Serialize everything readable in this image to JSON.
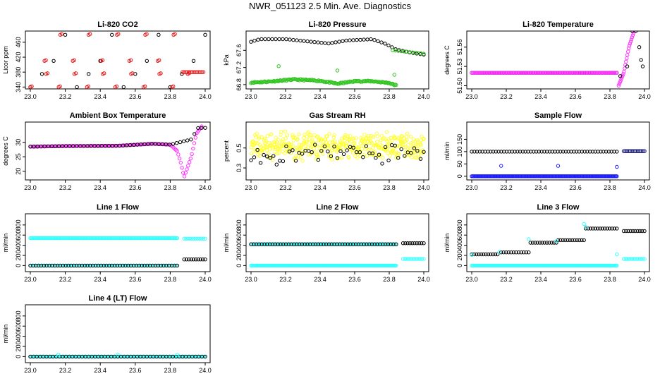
{
  "title": "NWR_051123  2.5 Min. Ave. Diagnostics",
  "colors": {
    "black": "#000000",
    "red": "#e8191c",
    "green": "#31c420",
    "magenta": "#ff33ff",
    "yellow": "#ffff33",
    "blue": "#1a1aff",
    "navy": "#0c0c6e",
    "cyan": "#33ffff"
  },
  "chart_data": [
    {
      "type": "scatter",
      "title": "Li-820 CO2",
      "ylabel": "Licor ppm",
      "xlim": [
        23.0,
        24.0
      ],
      "ylim": [
        335,
        490
      ],
      "x_ticks": [
        "23.0",
        "23.2",
        "23.4",
        "23.6",
        "23.8",
        "24.0"
      ],
      "y_ticks": [
        "340",
        "380",
        "420",
        "460"
      ],
      "series": [
        {
          "name": "black",
          "color": "black",
          "gen": "levels",
          "levels": [
            340,
            375,
            410,
            480
          ],
          "x0": 23.0,
          "x1": 24.0,
          "n": 16
        },
        {
          "name": "red",
          "color": "red",
          "gen": "levels",
          "levels": [
            340,
            375,
            410,
            480
          ],
          "x0": 23.0,
          "x1": 23.85,
          "n": 22,
          "shift": 0.05
        },
        {
          "name": "red-tail",
          "color": "red",
          "gen": "flat",
          "x0": 23.87,
          "x1": 23.99,
          "y": 380,
          "n": 14
        }
      ]
    },
    {
      "type": "scatter",
      "title": "Li-820 Pressure",
      "ylabel": "kPa",
      "xlim": [
        23.0,
        24.0
      ],
      "ylim": [
        66.7,
        68.05
      ],
      "x_ticks": [
        "23.0",
        "23.2",
        "23.4",
        "23.6",
        "23.8",
        "24.0"
      ],
      "y_ticks": [
        "66.8",
        "67.2",
        "67.6"
      ],
      "series": [
        {
          "name": "black",
          "color": "black",
          "gen": "curve",
          "points": [
            [
              23.0,
              67.8
            ],
            [
              23.05,
              67.86
            ],
            [
              23.2,
              67.86
            ],
            [
              23.35,
              67.8
            ],
            [
              23.45,
              67.76
            ],
            [
              23.55,
              67.83
            ],
            [
              23.7,
              67.86
            ],
            [
              23.78,
              67.75
            ],
            [
              23.84,
              67.62
            ],
            [
              23.92,
              67.55
            ],
            [
              24.0,
              67.5
            ]
          ],
          "n": 50
        },
        {
          "name": "green",
          "color": "green",
          "gen": "curve",
          "points": [
            [
              23.0,
              66.85
            ],
            [
              23.1,
              66.87
            ],
            [
              23.25,
              66.92
            ],
            [
              23.4,
              66.89
            ],
            [
              23.5,
              66.82
            ],
            [
              23.6,
              66.88
            ],
            [
              23.7,
              66.88
            ],
            [
              23.8,
              66.84
            ],
            [
              23.84,
              66.78
            ]
          ],
          "n": 160,
          "jitter": 0.03
        },
        {
          "name": "green-tail",
          "color": "green",
          "gen": "curve",
          "points": [
            [
              23.82,
              67.6
            ],
            [
              23.9,
              67.57
            ],
            [
              24.0,
              67.52
            ]
          ],
          "n": 12
        },
        {
          "name": "green-out",
          "color": "green",
          "gen": "list",
          "x": [
            23.16,
            23.5,
            23.83
          ],
          "y": [
            67.23,
            67.13,
            67.03
          ]
        }
      ]
    },
    {
      "type": "scatter",
      "title": "Li-820 Temperature",
      "ylabel": "degrees C",
      "xlim": [
        23.0,
        24.0
      ],
      "ylim": [
        51.495,
        51.585
      ],
      "x_ticks": [
        "23.0",
        "23.2",
        "23.4",
        "23.6",
        "23.8",
        "24.0"
      ],
      "y_ticks": [
        "51.50",
        "51.53",
        "51.56"
      ],
      "series": [
        {
          "name": "black",
          "color": "black",
          "gen": "flat",
          "x0": 23.0,
          "x1": 23.84,
          "y": 51.52,
          "n": 60
        },
        {
          "name": "magenta",
          "color": "magenta",
          "gen": "flat",
          "x0": 23.0,
          "x1": 23.84,
          "y": 51.52,
          "n": 120
        },
        {
          "name": "magenta-rise",
          "color": "magenta",
          "gen": "curve",
          "points": [
            [
              23.85,
              51.5
            ],
            [
              23.88,
              51.52
            ],
            [
              23.91,
              51.56
            ],
            [
              23.94,
              51.585
            ]
          ],
          "n": 24
        },
        {
          "name": "black-tail",
          "color": "black",
          "gen": "list",
          "x": [
            23.86,
            23.9,
            23.93,
            23.95,
            23.97,
            23.98,
            23.99
          ],
          "y": [
            51.515,
            51.53,
            51.585,
            51.585,
            51.56,
            51.54,
            51.53
          ]
        }
      ]
    },
    {
      "type": "scatter",
      "title": "Ambient Box Temperature",
      "ylabel": "degrees C",
      "xlim": [
        23.0,
        24.0
      ],
      "ylim": [
        17,
        37
      ],
      "x_ticks": [
        "23.0",
        "23.2",
        "23.4",
        "23.6",
        "23.8",
        "24.0"
      ],
      "y_ticks": [
        "20",
        "25",
        "30"
      ],
      "series": [
        {
          "name": "magenta",
          "color": "magenta",
          "gen": "curve",
          "points": [
            [
              23.0,
              28.5
            ],
            [
              23.2,
              28.7
            ],
            [
              23.5,
              28.8
            ],
            [
              23.7,
              29.5
            ],
            [
              23.8,
              29.2
            ],
            [
              23.84,
              27
            ],
            [
              23.86,
              23
            ],
            [
              23.88,
              18
            ],
            [
              23.92,
              25
            ],
            [
              23.95,
              33
            ],
            [
              23.98,
              35.5
            ]
          ],
          "n": 140
        },
        {
          "name": "black",
          "color": "black",
          "gen": "curve",
          "points": [
            [
              23.0,
              28.5
            ],
            [
              23.2,
              28.7
            ],
            [
              23.5,
              28.8
            ],
            [
              23.7,
              29.5
            ],
            [
              23.8,
              29.2
            ],
            [
              23.92,
              31
            ],
            [
              23.96,
              35
            ],
            [
              24.0,
              35
            ]
          ],
          "n": 50
        }
      ]
    },
    {
      "type": "scatter",
      "title": "Gas Stream RH",
      "ylabel": "percent",
      "xlim": [
        23.0,
        24.0
      ],
      "ylim": [
        0.18,
        0.76
      ],
      "x_ticks": [
        "23.0",
        "23.2",
        "23.4",
        "23.6",
        "23.8",
        "24.0"
      ],
      "y_ticks": [
        "0.3",
        "0.5"
      ],
      "series": [
        {
          "name": "yellow",
          "color": "yellow",
          "gen": "noise",
          "x0": 23.0,
          "x1": 24.0,
          "center": 0.52,
          "spread": 0.15,
          "n": 420,
          "seed": 7
        },
        {
          "name": "black",
          "color": "black",
          "gen": "noise",
          "x0": 23.0,
          "x1": 24.0,
          "center": 0.45,
          "spread": 0.12,
          "n": 55,
          "seed": 3
        }
      ]
    },
    {
      "type": "scatter",
      "title": "Sample Flow",
      "ylabel": "ml/min",
      "xlim": [
        23.0,
        24.0
      ],
      "ylim": [
        -15,
        220
      ],
      "x_ticks": [
        "23.0",
        "23.2",
        "23.4",
        "23.6",
        "23.8",
        "24.0"
      ],
      "y_ticks": [
        "0",
        "50",
        "100",
        "150"
      ],
      "series": [
        {
          "name": "black",
          "color": "black",
          "gen": "flat",
          "x0": 23.0,
          "x1": 23.84,
          "y": 100,
          "n": 55
        },
        {
          "name": "blue",
          "color": "blue",
          "gen": "flat",
          "x0": 23.0,
          "x1": 23.84,
          "y": 0,
          "n": 160
        },
        {
          "name": "blue-spikes",
          "color": "blue",
          "gen": "list",
          "x": [
            23.17,
            23.5,
            23.84
          ],
          "y": [
            42,
            42,
            38
          ]
        },
        {
          "name": "navy-tail",
          "color": "navy",
          "gen": "flat",
          "x0": 23.88,
          "x1": 24.0,
          "y": 102,
          "n": 14
        }
      ]
    },
    {
      "type": "scatter",
      "title": "Line 1 Flow",
      "ylabel": "ml/min",
      "xlim": [
        23.0,
        24.0
      ],
      "ylim": [
        -120,
        1020
      ],
      "x_ticks": [
        "23.0",
        "23.2",
        "23.4",
        "23.6",
        "23.8",
        "24.0"
      ],
      "y_ticks": [
        "0",
        "200",
        "400",
        "600",
        "800"
      ],
      "series": [
        {
          "name": "cyan-top",
          "color": "cyan",
          "gen": "flat",
          "x0": 23.0,
          "x1": 23.84,
          "y": 540,
          "n": 160
        },
        {
          "name": "cyan-bottom",
          "color": "cyan",
          "gen": "flat",
          "x0": 23.0,
          "x1": 23.84,
          "y": 0,
          "n": 110
        },
        {
          "name": "black",
          "color": "black",
          "gen": "flat",
          "x0": 23.0,
          "x1": 23.84,
          "y": 0,
          "n": 55
        },
        {
          "name": "cyan-tail",
          "color": "cyan",
          "gen": "flat",
          "x0": 23.88,
          "x1": 24.0,
          "y": 530,
          "n": 12
        },
        {
          "name": "black-tail",
          "color": "black",
          "gen": "flat",
          "x0": 23.88,
          "x1": 24.0,
          "y": 120,
          "n": 10
        }
      ]
    },
    {
      "type": "scatter",
      "title": "Line 2 Flow",
      "ylabel": "ml/min",
      "xlim": [
        23.0,
        24.0
      ],
      "ylim": [
        -120,
        1020
      ],
      "x_ticks": [
        "23.0",
        "23.2",
        "23.4",
        "23.6",
        "23.8",
        "24.0"
      ],
      "y_ticks": [
        "0",
        "200",
        "400",
        "600",
        "800"
      ],
      "series": [
        {
          "name": "cyan-top",
          "color": "cyan",
          "gen": "flat",
          "x0": 23.0,
          "x1": 23.84,
          "y": 420,
          "n": 120
        },
        {
          "name": "black",
          "color": "black",
          "gen": "flat",
          "x0": 23.0,
          "x1": 23.84,
          "y": 420,
          "n": 55
        },
        {
          "name": "cyan-bottom",
          "color": "cyan",
          "gen": "flat",
          "x0": 23.0,
          "x1": 23.84,
          "y": 0,
          "n": 160
        },
        {
          "name": "black-tail",
          "color": "black",
          "gen": "flat",
          "x0": 23.88,
          "x1": 24.0,
          "y": 440,
          "n": 10
        },
        {
          "name": "cyan-tail",
          "color": "cyan",
          "gen": "flat",
          "x0": 23.88,
          "x1": 24.0,
          "y": 130,
          "n": 12
        }
      ]
    },
    {
      "type": "scatter",
      "title": "Line 3 Flow",
      "ylabel": "ml/min",
      "xlim": [
        23.0,
        24.0
      ],
      "ylim": [
        -120,
        1020
      ],
      "x_ticks": [
        "23.0",
        "23.2",
        "23.4",
        "23.6",
        "23.8",
        "24.0"
      ],
      "y_ticks": [
        "0",
        "200",
        "400",
        "600",
        "800"
      ],
      "series": [
        {
          "name": "black-1",
          "color": "black",
          "gen": "flat",
          "x0": 23.0,
          "x1": 23.15,
          "y": 220,
          "n": 12
        },
        {
          "name": "black-2",
          "color": "black",
          "gen": "flat",
          "x0": 23.17,
          "x1": 23.33,
          "y": 260,
          "n": 12
        },
        {
          "name": "black-3",
          "color": "black",
          "gen": "flat",
          "x0": 23.34,
          "x1": 23.49,
          "y": 450,
          "n": 12
        },
        {
          "name": "black-4",
          "color": "black",
          "gen": "flat",
          "x0": 23.5,
          "x1": 23.65,
          "y": 500,
          "n": 12
        },
        {
          "name": "black-5",
          "color": "black",
          "gen": "flat",
          "x0": 23.66,
          "x1": 23.84,
          "y": 730,
          "n": 14
        },
        {
          "name": "black-6",
          "color": "black",
          "gen": "flat",
          "x0": 23.88,
          "x1": 24.0,
          "y": 680,
          "n": 10
        },
        {
          "name": "cyan-bottom",
          "color": "cyan",
          "gen": "flat",
          "x0": 23.0,
          "x1": 23.84,
          "y": 0,
          "n": 160
        },
        {
          "name": "cyan-tail",
          "color": "cyan",
          "gen": "flat",
          "x0": 23.88,
          "x1": 24.0,
          "y": 130,
          "n": 12
        },
        {
          "name": "cyan-spikes",
          "color": "cyan",
          "gen": "list",
          "x": [
            23.0,
            23.16,
            23.33,
            23.49,
            23.65,
            23.66,
            23.84
          ],
          "y": [
            210,
            270,
            520,
            480,
            820,
            760,
            220
          ]
        }
      ]
    },
    {
      "type": "scatter",
      "title": "Line 4 (LT) Flow",
      "ylabel": "ml/min",
      "xlim": [
        23.0,
        24.0
      ],
      "ylim": [
        -120,
        1020
      ],
      "x_ticks": [
        "23.0",
        "23.2",
        "23.4",
        "23.6",
        "23.8",
        "24.0"
      ],
      "y_ticks": [
        "0",
        "200",
        "400",
        "600",
        "800"
      ],
      "series": [
        {
          "name": "cyan",
          "color": "cyan",
          "gen": "flat",
          "x0": 23.0,
          "x1": 24.0,
          "y": 0,
          "n": 160
        },
        {
          "name": "black",
          "color": "black",
          "gen": "flat",
          "x0": 23.0,
          "x1": 24.0,
          "y": 0,
          "n": 55
        },
        {
          "name": "cyan-spikes",
          "color": "cyan",
          "gen": "list",
          "x": [
            23.16,
            23.5,
            23.84
          ],
          "y": [
            40,
            40,
            35
          ]
        }
      ]
    }
  ]
}
